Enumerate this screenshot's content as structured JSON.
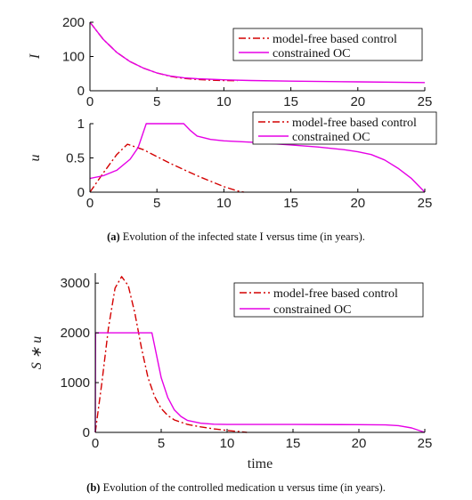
{
  "captions": [
    {
      "tag": "(a)",
      "text": "Evolution of the infected state I versus time (in years)."
    },
    {
      "tag": "(b)",
      "text": "Evolution of the controlled medication u versus time (in years)."
    }
  ],
  "colors": {
    "mfbc": "#d40000",
    "oc": "#e600e6",
    "axis": "#000000"
  },
  "chart_data": [
    {
      "type": "line",
      "ylabel": "I",
      "xlabel": "",
      "xlim": [
        0,
        25
      ],
      "ylim": [
        0,
        200
      ],
      "xticks": [
        0,
        5,
        10,
        15,
        20,
        25
      ],
      "yticks": [
        0,
        100,
        200
      ],
      "legend_position": "top-right",
      "series": [
        {
          "name": "model-free based control",
          "style": "dash-dot",
          "color": "#d40000",
          "x": [
            0,
            1,
            2,
            3,
            4,
            5,
            6,
            7,
            8,
            9,
            10,
            11
          ],
          "y": [
            200,
            150,
            112,
            85,
            66,
            52,
            42,
            36,
            33,
            31,
            30,
            29
          ]
        },
        {
          "name": "constrained OC",
          "style": "solid",
          "color": "#e600e6",
          "x": [
            0,
            1,
            2,
            3,
            4,
            5,
            6,
            7,
            8,
            10,
            12,
            15,
            20,
            25
          ],
          "y": [
            200,
            150,
            112,
            85,
            66,
            52,
            43,
            38,
            35,
            32,
            30,
            28,
            26,
            24
          ]
        }
      ]
    },
    {
      "type": "line",
      "ylabel": "u",
      "xlabel": "",
      "xlim": [
        0,
        25
      ],
      "ylim": [
        0,
        1
      ],
      "xticks": [
        0,
        5,
        10,
        15,
        20,
        25
      ],
      "yticks": [
        0,
        0.5,
        1
      ],
      "legend_position": "top-right",
      "series": [
        {
          "name": "model-free based control",
          "style": "dash-dot",
          "color": "#d40000",
          "x": [
            0,
            1,
            2,
            2.8,
            4,
            5,
            6,
            7,
            8,
            9,
            10,
            11,
            11.5
          ],
          "y": [
            0,
            0.28,
            0.55,
            0.7,
            0.62,
            0.52,
            0.42,
            0.33,
            0.24,
            0.16,
            0.08,
            0.02,
            0
          ]
        },
        {
          "name": "constrained OC",
          "style": "solid",
          "color": "#e600e6",
          "x": [
            0,
            1,
            2,
            3,
            3.6,
            4.2,
            7,
            7.5,
            8,
            9,
            10,
            12,
            15,
            17,
            19,
            20,
            21,
            22,
            23,
            24,
            25
          ],
          "y": [
            0.2,
            0.24,
            0.32,
            0.48,
            0.65,
            1,
            1,
            0.9,
            0.82,
            0.77,
            0.75,
            0.73,
            0.69,
            0.66,
            0.62,
            0.59,
            0.55,
            0.47,
            0.35,
            0.2,
            0
          ]
        }
      ]
    },
    {
      "type": "line",
      "ylabel": "S ∗ u",
      "xlabel": "time",
      "xlim": [
        0,
        25
      ],
      "ylim": [
        0,
        3200
      ],
      "xticks": [
        0,
        5,
        10,
        15,
        20,
        25
      ],
      "yticks": [
        0,
        1000,
        2000,
        3000
      ],
      "legend_position": "top-right",
      "series": [
        {
          "name": "model-free based control",
          "style": "dash-dot",
          "color": "#d40000",
          "x": [
            0,
            0.5,
            1,
            1.5,
            2,
            2.5,
            3,
            3.5,
            4,
            4.5,
            5,
            5.5,
            6,
            7,
            8,
            9,
            10,
            11,
            11.5
          ],
          "y": [
            0,
            1000,
            2100,
            2900,
            3130,
            2950,
            2400,
            1700,
            1100,
            720,
            480,
            340,
            250,
            160,
            110,
            70,
            40,
            15,
            0
          ]
        },
        {
          "name": "constrained OC",
          "style": "solid",
          "color": "#e600e6",
          "x": [
            0,
            0.02,
            4.3,
            5,
            5.5,
            6,
            6.5,
            7,
            8,
            9,
            10,
            12,
            15,
            20,
            22,
            23,
            24,
            25
          ],
          "y": [
            0,
            2000,
            2000,
            1100,
            700,
            450,
            320,
            240,
            185,
            165,
            160,
            160,
            160,
            155,
            150,
            135,
            90,
            0
          ]
        }
      ]
    }
  ]
}
